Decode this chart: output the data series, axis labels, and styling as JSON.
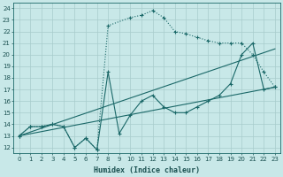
{
  "xlabel": "Humidex (Indice chaleur)",
  "xlim": [
    -0.5,
    23.5
  ],
  "ylim": [
    11.5,
    24.5
  ],
  "xticks": [
    0,
    1,
    2,
    3,
    4,
    5,
    6,
    7,
    8,
    9,
    10,
    11,
    12,
    13,
    14,
    15,
    16,
    17,
    18,
    19,
    20,
    21,
    22,
    23
  ],
  "yticks": [
    12,
    13,
    14,
    15,
    16,
    17,
    18,
    19,
    20,
    21,
    22,
    23,
    24
  ],
  "bg_color": "#c8e8e8",
  "grid_color": "#a8cccc",
  "line_color": "#1a6868",
  "dotted_line": {
    "x": [
      0,
      1,
      2,
      3,
      4,
      5,
      6,
      7,
      8,
      10,
      11,
      12,
      13,
      14,
      15,
      16,
      17,
      18,
      19,
      20,
      21,
      22,
      23
    ],
    "y": [
      13,
      13.8,
      13.8,
      14.0,
      13.8,
      12,
      12.8,
      11.8,
      22.5,
      23.2,
      23.4,
      23.8,
      23.2,
      22.0,
      21.8,
      21.5,
      21.2,
      21.0,
      21.0,
      21.0,
      20.0,
      18.5,
      17.2
    ]
  },
  "solid_marker_line": {
    "x": [
      0,
      1,
      2,
      3,
      4,
      5,
      6,
      7,
      8,
      9,
      10,
      11,
      12,
      13,
      14,
      15,
      16,
      17,
      18,
      19,
      20,
      21,
      22,
      23
    ],
    "y": [
      13,
      13.8,
      13.8,
      14.0,
      13.8,
      12,
      12.8,
      11.8,
      18.5,
      13.2,
      14.8,
      16.0,
      16.5,
      15.5,
      15.0,
      15.0,
      15.5,
      16.0,
      16.5,
      17.5,
      20.0,
      21.0,
      17.0,
      17.2
    ]
  },
  "straight_line1": {
    "x": [
      0,
      23
    ],
    "y": [
      13.0,
      20.5
    ]
  },
  "straight_line2": {
    "x": [
      0,
      23
    ],
    "y": [
      13.0,
      17.2
    ]
  }
}
